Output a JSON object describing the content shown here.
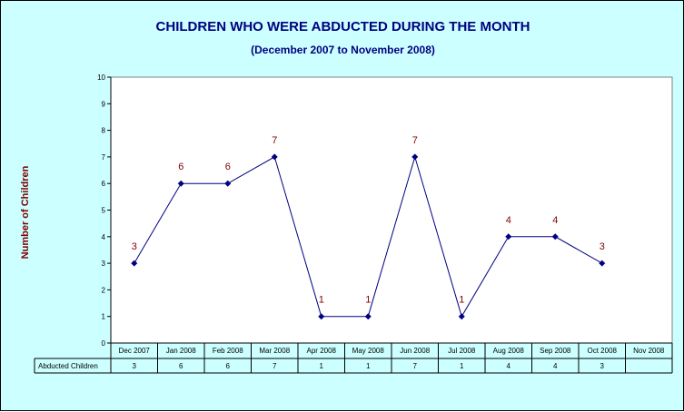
{
  "chart_data": {
    "type": "line",
    "title": "CHILDREN WHO WERE ABDUCTED DURING THE MONTH",
    "subtitle": "(December 2007 to November 2008)",
    "xlabel": "",
    "ylabel": "Number of Children",
    "ylim": [
      0,
      10
    ],
    "yticks": [
      "0",
      "1",
      "2",
      "3",
      "4",
      "5",
      "6",
      "7",
      "8",
      "9",
      "10"
    ],
    "grid": false,
    "categories": [
      "Dec 2007",
      "Jan 2008",
      "Feb 2008",
      "Mar 2008",
      "Apr 2008",
      "May 2008",
      "Jun 2008",
      "Jul 2008",
      "Aug 2008",
      "Sep 2008",
      "Oct 2008",
      "Nov 2008"
    ],
    "series": [
      {
        "name": "Abducted Children",
        "values": [
          3,
          6,
          6,
          7,
          1,
          1,
          7,
          1,
          4,
          4,
          3,
          null
        ],
        "labels": [
          "3",
          "6",
          "6",
          "7",
          "1",
          "1",
          "7",
          "1",
          "4",
          "4",
          "3",
          ""
        ]
      }
    ],
    "data_table": true,
    "colors": {
      "background": "#ccffff",
      "plot_area": "#ffffff",
      "line": "#000080",
      "data_label": "#800000",
      "title": "#000080"
    }
  }
}
